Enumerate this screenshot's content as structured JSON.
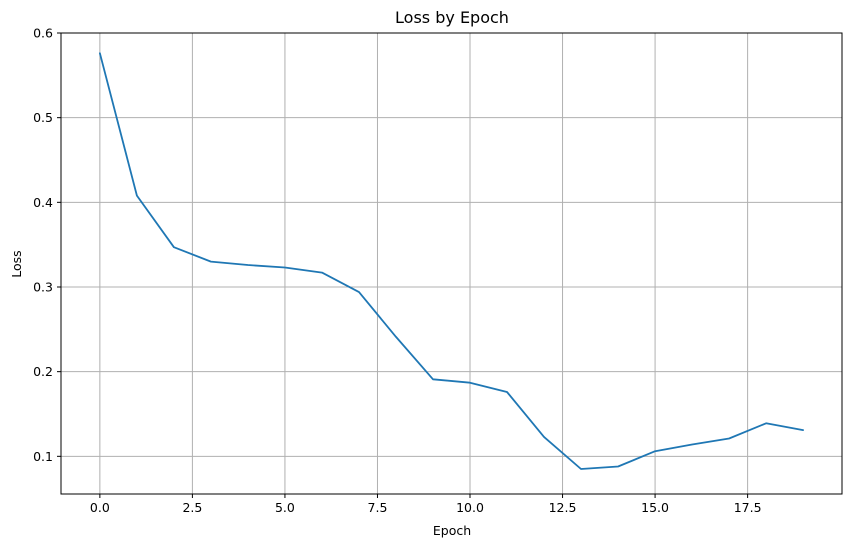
{
  "chart_data": {
    "type": "line",
    "title": "Loss by Epoch",
    "xlabel": "Epoch",
    "ylabel": "Loss",
    "xlim": [
      -1.05,
      20.05
    ],
    "ylim": [
      0.0555,
      0.6
    ],
    "xticks": [
      0.0,
      2.5,
      5.0,
      7.5,
      10.0,
      12.5,
      15.0,
      17.5
    ],
    "xtick_labels": [
      "0.0",
      "2.5",
      "5.0",
      "7.5",
      "10.0",
      "12.5",
      "15.0",
      "17.5"
    ],
    "yticks": [
      0.1,
      0.2,
      0.3,
      0.4,
      0.5,
      0.6
    ],
    "ytick_labels": [
      "0.1",
      "0.2",
      "0.3",
      "0.4",
      "0.5",
      "0.6"
    ],
    "grid": true,
    "series": [
      {
        "color": "#1f77b4",
        "x": [
          0,
          1,
          2,
          3,
          4,
          5,
          6,
          7,
          8,
          9,
          10,
          11,
          12,
          13,
          14,
          15,
          16,
          17,
          18,
          19
        ],
        "y": [
          0.576,
          0.408,
          0.347,
          0.33,
          0.326,
          0.323,
          0.317,
          0.294,
          0.241,
          0.191,
          0.187,
          0.176,
          0.123,
          0.085,
          0.088,
          0.106,
          0.114,
          0.121,
          0.139,
          0.131
        ]
      }
    ]
  }
}
